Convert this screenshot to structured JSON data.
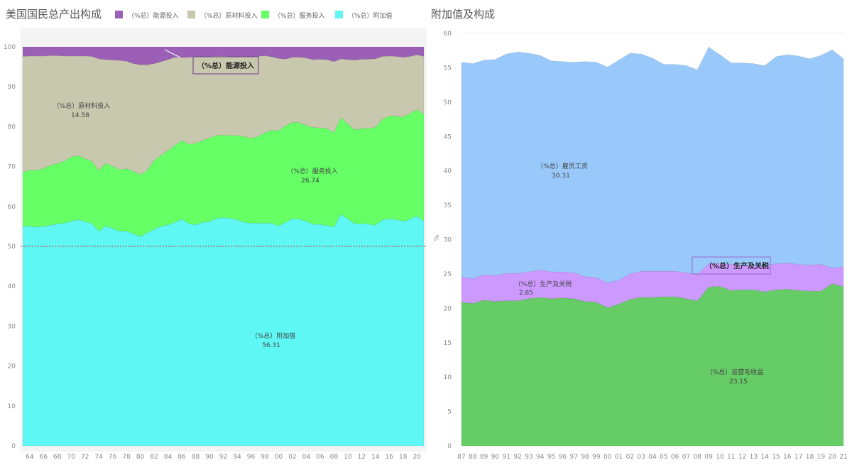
{
  "chart_data": [
    {
      "type": "area",
      "stacked": true,
      "title": "美国国民总产出构成",
      "legend_position": "top",
      "x": [
        1963,
        1964,
        1965,
        1966,
        1967,
        1968,
        1969,
        1970,
        1971,
        1972,
        1973,
        1974,
        1975,
        1976,
        1977,
        1978,
        1979,
        1980,
        1981,
        1982,
        1983,
        1984,
        1985,
        1986,
        1987,
        1988,
        1989,
        1990,
        1991,
        1992,
        1993,
        1994,
        1995,
        1996,
        1997,
        1998,
        1999,
        2000,
        2001,
        2002,
        2003,
        2004,
        2005,
        2006,
        2007,
        2008,
        2009,
        2010,
        2011,
        2012,
        2013,
        2014,
        2015,
        2016,
        2017,
        2018,
        2019,
        2020,
        2021
      ],
      "x_tick_labels": [
        "64",
        "66",
        "68",
        "70",
        "72",
        "74",
        "76",
        "78",
        "80",
        "82",
        "84",
        "86",
        "88",
        "90",
        "92",
        "94",
        "96",
        "98",
        "00",
        "02",
        "04",
        "06",
        "08",
        "10",
        "12",
        "14",
        "16",
        "18",
        "20"
      ],
      "y_ticks": [
        0,
        10,
        20,
        30,
        40,
        50,
        60,
        70,
        80,
        90,
        100
      ],
      "ylim": [
        0,
        100
      ],
      "reference_line": {
        "value": 50,
        "style": "dashed",
        "color": "#cc3333"
      },
      "series": [
        {
          "name": "（%总）附加值",
          "color": "#5ef7f4",
          "label_value": "56.31",
          "values": [
            55.0,
            55.1,
            54.8,
            55.0,
            55.3,
            55.6,
            55.8,
            56.3,
            56.7,
            56.2,
            55.7,
            53.8,
            55.1,
            54.5,
            53.8,
            53.8,
            53.2,
            52.4,
            53.4,
            54.3,
            55.0,
            55.4,
            56.0,
            56.8,
            55.7,
            55.4,
            56.0,
            56.2,
            57.0,
            57.2,
            57.0,
            56.7,
            56.0,
            55.8,
            55.8,
            55.8,
            55.8,
            55.1,
            56.0,
            56.9,
            56.8,
            56.3,
            55.5,
            55.5,
            55.2,
            54.8,
            58.0,
            56.9,
            55.7,
            55.7,
            55.6,
            55.3,
            56.6,
            56.9,
            56.7,
            56.3,
            56.8,
            57.6,
            56.31
          ]
        },
        {
          "name": "（%总）服务投入",
          "color": "#66ff66",
          "label_value": "26.74",
          "values": [
            13.6,
            14.0,
            14.2,
            14.5,
            15.0,
            15.2,
            15.5,
            16.1,
            16.0,
            15.8,
            15.6,
            15.2,
            15.7,
            15.6,
            15.4,
            15.7,
            15.6,
            15.6,
            15.6,
            17.2,
            17.8,
            18.6,
            19.3,
            19.7,
            19.9,
            20.4,
            20.5,
            21.0,
            20.8,
            20.7,
            20.8,
            21.1,
            21.5,
            21.3,
            21.7,
            22.7,
            23.3,
            23.9,
            24.2,
            24.2,
            24.2,
            24.0,
            24.3,
            24.2,
            24.3,
            23.7,
            24.2,
            23.8,
            23.5,
            23.8,
            24.0,
            24.5,
            25.2,
            25.8,
            25.9,
            26.1,
            26.5,
            26.7,
            26.74
          ]
        },
        {
          "name": "（%总）原材料投入",
          "color": "#c8c8ae",
          "label_value": "14.58",
          "values": [
            29.0,
            28.6,
            28.7,
            28.2,
            27.5,
            27.0,
            26.4,
            25.3,
            25.0,
            25.7,
            26.3,
            28.0,
            26.0,
            26.6,
            27.4,
            26.9,
            27.0,
            27.5,
            26.5,
            24.3,
            23.5,
            22.8,
            22.1,
            20.8,
            21.8,
            21.7,
            21.1,
            20.4,
            19.9,
            19.8,
            19.8,
            19.8,
            20.0,
            20.4,
            20.1,
            19.3,
            18.4,
            18.1,
            16.7,
            16.3,
            16.4,
            16.9,
            17.0,
            17.2,
            17.3,
            17.8,
            14.8,
            16.1,
            17.5,
            17.4,
            17.3,
            17.2,
            15.8,
            15.0,
            15.0,
            15.0,
            14.3,
            13.7,
            14.58
          ]
        },
        {
          "name": "（%总）能源投入",
          "color": "#9b5fb5",
          "values": [
            2.4,
            2.3,
            2.3,
            2.3,
            2.2,
            2.2,
            2.3,
            2.3,
            2.3,
            2.3,
            2.4,
            3.0,
            3.2,
            3.3,
            3.4,
            3.6,
            4.2,
            4.5,
            4.5,
            4.2,
            3.7,
            3.2,
            2.6,
            2.7,
            2.6,
            2.5,
            2.4,
            2.4,
            2.3,
            2.3,
            2.4,
            2.4,
            2.5,
            2.5,
            2.4,
            2.2,
            2.5,
            2.9,
            3.1,
            2.6,
            2.6,
            2.8,
            3.2,
            3.1,
            3.2,
            3.7,
            3.0,
            3.2,
            3.3,
            3.1,
            3.1,
            3.0,
            2.4,
            2.3,
            2.4,
            2.6,
            2.4,
            2.0,
            2.37
          ]
        }
      ],
      "highlight_annotation": "（%总）能源投入"
    },
    {
      "type": "area",
      "stacked": true,
      "title": "附加值及构成",
      "ylabel": "%",
      "x": [
        1987,
        1988,
        1989,
        1990,
        1991,
        1992,
        1993,
        1994,
        1995,
        1996,
        1997,
        1998,
        1999,
        2000,
        2001,
        2002,
        2003,
        2004,
        2005,
        2006,
        2007,
        2008,
        2009,
        2010,
        2011,
        2012,
        2013,
        2014,
        2015,
        2016,
        2017,
        2018,
        2019,
        2020,
        2021
      ],
      "x_tick_labels": [
        "87",
        "88",
        "89",
        "90",
        "91",
        "92",
        "93",
        "94",
        "95",
        "96",
        "97",
        "98",
        "99",
        "00",
        "01",
        "02",
        "03",
        "04",
        "05",
        "06",
        "07",
        "08",
        "09",
        "10",
        "11",
        "12",
        "13",
        "14",
        "15",
        "16",
        "17",
        "18",
        "19",
        "20",
        "21"
      ],
      "y_ticks": [
        0,
        5,
        10,
        15,
        20,
        25,
        30,
        35,
        40,
        45,
        50,
        55,
        60
      ],
      "ylim": [
        0,
        60
      ],
      "series": [
        {
          "name": "（%总）运营毛收益",
          "color": "#66cc66",
          "label_value": "23.15",
          "values": [
            20.9,
            20.7,
            21.2,
            21.0,
            21.1,
            21.1,
            21.4,
            21.6,
            21.4,
            21.5,
            21.4,
            21.0,
            20.9,
            20.1,
            20.6,
            21.3,
            21.6,
            21.6,
            21.7,
            21.7,
            21.4,
            21.1,
            23.1,
            23.2,
            22.6,
            22.7,
            22.7,
            22.4,
            22.7,
            22.8,
            22.6,
            22.5,
            22.5,
            23.6,
            23.15
          ]
        },
        {
          "name": "（%总）生产及关税",
          "color": "#cc99ff",
          "label_value": "2.85",
          "values": [
            3.7,
            3.6,
            3.7,
            3.8,
            4.0,
            4.0,
            3.9,
            4.0,
            3.9,
            3.8,
            3.8,
            3.6,
            3.6,
            3.6,
            3.5,
            3.7,
            3.8,
            3.8,
            3.7,
            3.7,
            3.8,
            3.8,
            3.4,
            3.3,
            3.8,
            3.6,
            3.5,
            3.8,
            3.8,
            3.8,
            3.8,
            3.8,
            3.9,
            2.3,
            2.85
          ]
        },
        {
          "name": "（%总）雇员工资",
          "color": "#99c9fb",
          "label_value": "30.31",
          "values": [
            31.2,
            31.3,
            31.2,
            31.4,
            31.9,
            32.2,
            31.8,
            31.2,
            30.7,
            30.6,
            30.6,
            31.3,
            31.3,
            31.4,
            32.0,
            32.1,
            31.6,
            31.0,
            30.1,
            30.1,
            30.1,
            29.8,
            31.5,
            30.4,
            29.3,
            29.4,
            29.4,
            29.1,
            30.1,
            30.3,
            30.3,
            30.0,
            30.4,
            31.7,
            30.31
          ]
        }
      ],
      "highlight_annotation": "（%总）生产及关税"
    }
  ]
}
